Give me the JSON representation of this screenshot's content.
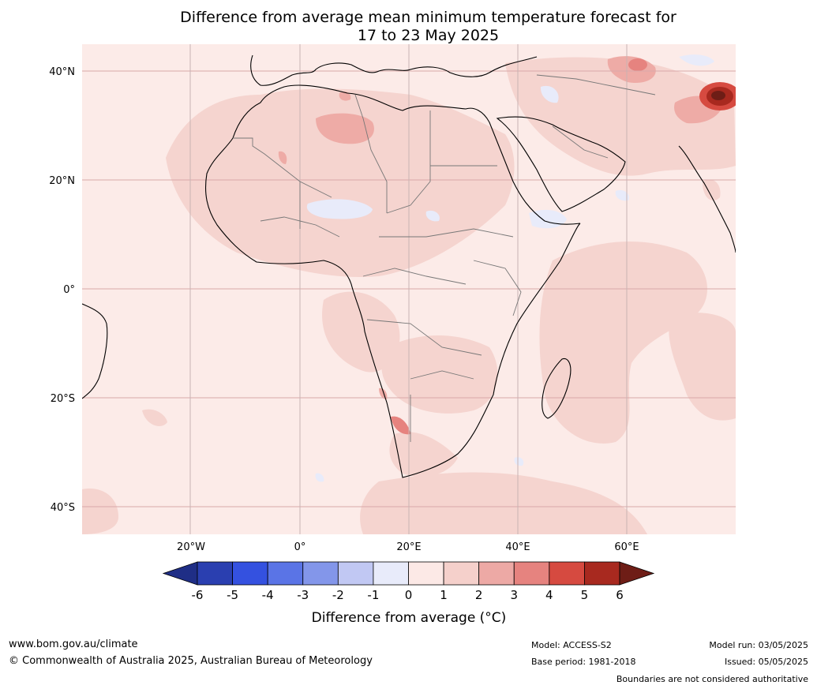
{
  "title": {
    "line1": "Difference from average mean minimum temperature forecast for",
    "line2": "17 to 23 May 2025"
  },
  "map": {
    "lat_labels": [
      "40°N",
      "20°N",
      "0°",
      "20°S",
      "40°S"
    ],
    "lon_labels": [
      "20°W",
      "0°",
      "20°E",
      "40°E",
      "60°E"
    ]
  },
  "colorbar": {
    "ticks": [
      "-6",
      "-5",
      "-4",
      "-3",
      "-2",
      "-1",
      "0",
      "1",
      "2",
      "3",
      "4",
      "5",
      "6"
    ],
    "label": "Difference from average (°C)",
    "colors": [
      "#1f2e86",
      "#2a3fb0",
      "#3451e0",
      "#5a74e6",
      "#8396ea",
      "#c1c8f3",
      "#e8ebfa",
      "#fce9e6",
      "#f5d0cb",
      "#eda9a5",
      "#e6837f",
      "#d64a40",
      "#a8291f",
      "#6e1d16"
    ]
  },
  "footer": {
    "website": "www.bom.gov.au/climate",
    "copyright": "© Commonwealth of Australia 2025, Australian Bureau of Meteorology",
    "model": "Model: ACCESS-S2",
    "base_period": "Base period: 1981-2018",
    "model_run": "Model run: 03/05/2025",
    "issued": "Issued: 05/05/2025",
    "disclaimer": "Boundaries are not considered authoritative"
  }
}
